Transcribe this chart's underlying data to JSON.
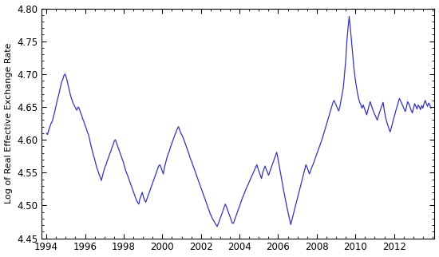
{
  "ylabel": "Log of Real Effective Exchange Rate",
  "line_color": "#3333BB",
  "line_width": 0.9,
  "ylim": [
    4.45,
    4.8
  ],
  "yticks": [
    4.45,
    4.5,
    4.55,
    4.6,
    4.65,
    4.7,
    4.75,
    4.8
  ],
  "xlim_start": 1993.75,
  "xlim_end": 2014.1,
  "xticks": [
    1994,
    1996,
    1998,
    2000,
    2002,
    2004,
    2006,
    2008,
    2010,
    2012
  ],
  "background_color": "#ffffff",
  "values": [
    4.61,
    4.608,
    4.615,
    4.62,
    4.625,
    4.628,
    4.635,
    4.642,
    4.65,
    4.658,
    4.665,
    4.672,
    4.68,
    4.688,
    4.692,
    4.698,
    4.7,
    4.695,
    4.688,
    4.68,
    4.672,
    4.665,
    4.66,
    4.655,
    4.652,
    4.648,
    4.645,
    4.65,
    4.648,
    4.642,
    4.638,
    4.632,
    4.628,
    4.622,
    4.618,
    4.612,
    4.608,
    4.6,
    4.592,
    4.585,
    4.578,
    4.572,
    4.565,
    4.558,
    4.553,
    4.548,
    4.543,
    4.538,
    4.545,
    4.552,
    4.558,
    4.562,
    4.568,
    4.572,
    4.578,
    4.582,
    4.588,
    4.592,
    4.598,
    4.6,
    4.595,
    4.59,
    4.585,
    4.58,
    4.575,
    4.57,
    4.565,
    4.558,
    4.552,
    4.548,
    4.543,
    4.538,
    4.533,
    4.528,
    4.523,
    4.518,
    4.513,
    4.508,
    4.505,
    4.502,
    4.51,
    4.515,
    4.52,
    4.513,
    4.508,
    4.505,
    4.51,
    4.515,
    4.52,
    4.525,
    4.53,
    4.535,
    4.54,
    4.545,
    4.55,
    4.555,
    4.56,
    4.562,
    4.558,
    4.553,
    4.548,
    4.558,
    4.565,
    4.572,
    4.578,
    4.582,
    4.588,
    4.593,
    4.598,
    4.603,
    4.608,
    4.612,
    4.617,
    4.62,
    4.615,
    4.61,
    4.607,
    4.603,
    4.598,
    4.593,
    4.588,
    4.583,
    4.578,
    4.572,
    4.568,
    4.563,
    4.558,
    4.553,
    4.548,
    4.543,
    4.538,
    4.533,
    4.528,
    4.523,
    4.518,
    4.513,
    4.508,
    4.503,
    4.498,
    4.493,
    4.488,
    4.484,
    4.48,
    4.477,
    4.474,
    4.471,
    4.468,
    4.472,
    4.477,
    4.482,
    4.487,
    4.492,
    4.497,
    4.502,
    4.498,
    4.493,
    4.488,
    4.483,
    4.478,
    4.473,
    4.473,
    4.478,
    4.483,
    4.488,
    4.493,
    4.498,
    4.503,
    4.508,
    4.513,
    4.517,
    4.522,
    4.526,
    4.53,
    4.534,
    4.538,
    4.542,
    4.546,
    4.55,
    4.554,
    4.558,
    4.562,
    4.556,
    4.551,
    4.546,
    4.541,
    4.55,
    4.555,
    4.56,
    4.555,
    4.551,
    4.546,
    4.551,
    4.556,
    4.561,
    4.566,
    4.571,
    4.576,
    4.581,
    4.572,
    4.562,
    4.552,
    4.542,
    4.532,
    4.522,
    4.513,
    4.504,
    4.495,
    4.487,
    4.479,
    4.471,
    4.478,
    4.485,
    4.492,
    4.499,
    4.506,
    4.513,
    4.52,
    4.527,
    4.534,
    4.541,
    4.548,
    4.555,
    4.562,
    4.558,
    4.553,
    4.548,
    4.553,
    4.558,
    4.562,
    4.567,
    4.572,
    4.577,
    4.582,
    4.587,
    4.592,
    4.597,
    4.602,
    4.608,
    4.614,
    4.62,
    4.626,
    4.632,
    4.638,
    4.644,
    4.65,
    4.656,
    4.66,
    4.656,
    4.652,
    4.648,
    4.644,
    4.65,
    4.66,
    4.67,
    4.68,
    4.7,
    4.72,
    4.75,
    4.77,
    4.788,
    4.77,
    4.75,
    4.73,
    4.71,
    4.695,
    4.683,
    4.672,
    4.663,
    4.657,
    4.653,
    4.648,
    4.653,
    4.648,
    4.643,
    4.638,
    4.645,
    4.652,
    4.658,
    4.652,
    4.647,
    4.642,
    4.638,
    4.634,
    4.63,
    4.636,
    4.642,
    4.647,
    4.652,
    4.657,
    4.645,
    4.635,
    4.628,
    4.622,
    4.617,
    4.612,
    4.618,
    4.625,
    4.632,
    4.638,
    4.645,
    4.651,
    4.657,
    4.663,
    4.659,
    4.655,
    4.651,
    4.647,
    4.643,
    4.65,
    4.658,
    4.655,
    4.65,
    4.645,
    4.641,
    4.648,
    4.655,
    4.651,
    4.647,
    4.653,
    4.65,
    4.646,
    4.652,
    4.648,
    4.655,
    4.66,
    4.655,
    4.651,
    4.656,
    4.653,
    4.648
  ]
}
